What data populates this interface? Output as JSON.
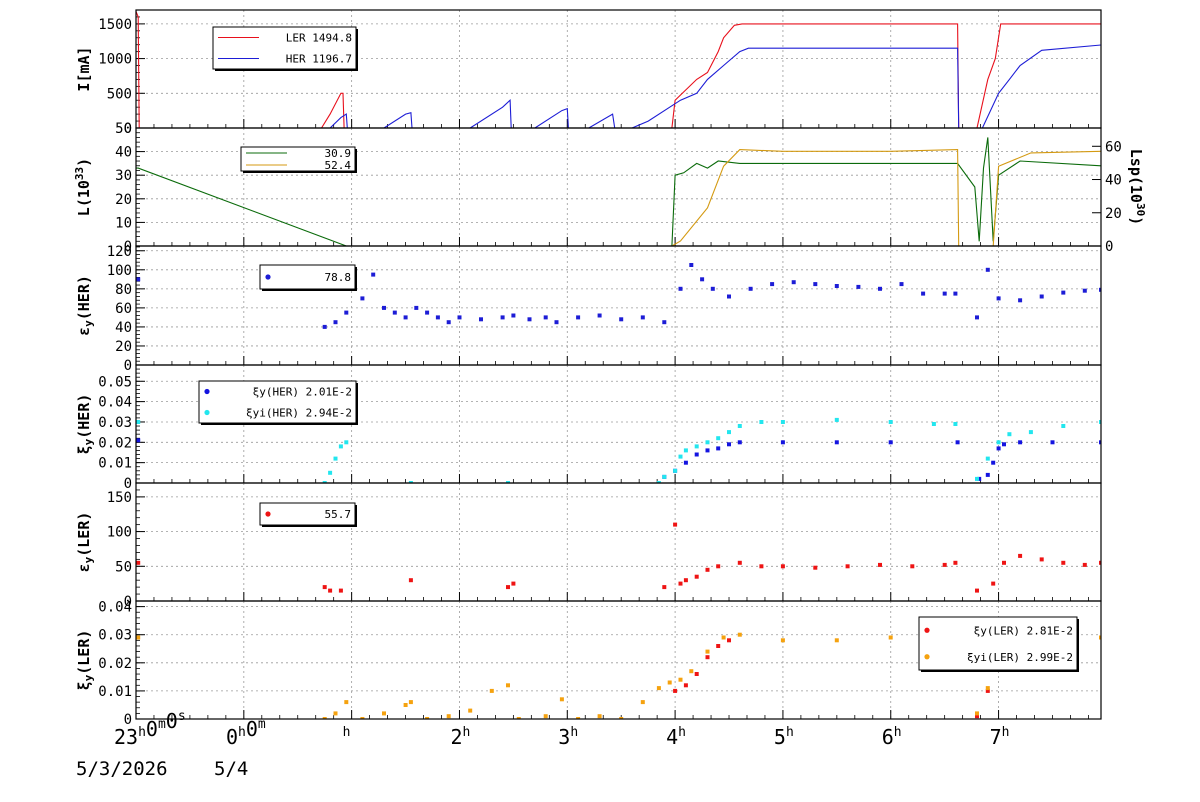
{
  "colors": {
    "ler": "#e8101c",
    "her": "#1d1dd6",
    "lum": "#0b6b0b",
    "lsp": "#d49a12",
    "xi_her": "#1414e0",
    "xi_her_i": "#22e6ee",
    "eps_ler": "#ee1414",
    "xi_ler": "#ee1414",
    "xi_ler_i": "#f5a20f"
  },
  "x_axis": {
    "range_hours": [
      -1,
      7.95
    ],
    "tick_labels": [
      {
        "h": -1,
        "label": "23",
        "sup": "h",
        "tail": "0",
        "sup2": "m",
        "tail2": "0",
        "sup3": "s"
      },
      {
        "h": 0,
        "label": "0",
        "sup": "h",
        "tail": "0",
        "sup2": "m"
      },
      {
        "h": 1,
        "label": "",
        "sup": "h"
      },
      {
        "h": 2,
        "label": "2",
        "sup": "h"
      },
      {
        "h": 3,
        "label": "3",
        "sup": "h"
      },
      {
        "h": 4,
        "label": "4",
        "sup": "h"
      },
      {
        "h": 5,
        "label": "5",
        "sup": "h"
      },
      {
        "h": 6,
        "label": "6",
        "sup": "h"
      },
      {
        "h": 7,
        "label": "7",
        "sup": "h"
      }
    ],
    "dates": [
      "5/3/2026",
      "5/4"
    ]
  },
  "chart_data": [
    {
      "type": "line",
      "panel": "current",
      "ylabel": "I[mA]",
      "ylim": [
        0,
        1700
      ],
      "yticks": [
        0,
        500,
        1000,
        1500
      ],
      "legend": [
        {
          "series": "LER",
          "text": "LER   1494.8"
        },
        {
          "series": "HER",
          "text": "HER   1196.7"
        }
      ],
      "series": [
        {
          "name": "LER",
          "color_key": "ler",
          "x": [
            -1,
            -0.98,
            -0.97,
            0.72,
            0.8,
            0.9,
            0.92,
            0.93,
            0.95,
            3.97,
            4.0,
            4.2,
            4.3,
            4.4,
            4.45,
            4.55,
            4.62,
            6.62,
            6.63,
            6.8,
            6.9,
            6.97,
            7.02,
            7.95
          ],
          "y": [
            1680,
            1600,
            0,
            0,
            200,
            500,
            500,
            0,
            0,
            0,
            400,
            700,
            800,
            1100,
            1300,
            1480,
            1500,
            1500,
            0,
            0,
            700,
            1000,
            1500,
            1500
          ]
        },
        {
          "name": "HER",
          "color_key": "her",
          "x": [
            -1,
            0.8,
            0.9,
            0.95,
            0.96,
            1.3,
            1.5,
            1.55,
            1.56,
            2.1,
            2.4,
            2.47,
            2.48,
            2.7,
            2.95,
            3.0,
            3.01,
            3.2,
            3.42,
            3.44,
            3.6,
            3.75,
            3.95,
            4.05,
            4.2,
            4.3,
            4.45,
            4.6,
            4.68,
            6.62,
            6.63,
            6.85,
            7.0,
            7.1,
            7.2,
            7.4,
            7.95
          ],
          "y": [
            0,
            0,
            150,
            200,
            0,
            0,
            200,
            220,
            0,
            0,
            300,
            400,
            0,
            0,
            250,
            280,
            0,
            0,
            200,
            0,
            0,
            100,
            300,
            400,
            500,
            700,
            900,
            1100,
            1150,
            1150,
            0,
            0,
            500,
            700,
            900,
            1120,
            1196
          ]
        }
      ]
    },
    {
      "type": "line",
      "panel": "luminosity",
      "ylabel": "L(10^33)",
      "ylabel_right": "Lsp(10^30)",
      "ylim": [
        0,
        50
      ],
      "yticks": [
        0,
        10,
        20,
        30,
        40,
        50
      ],
      "yticks_right": [
        0,
        20,
        40,
        60
      ],
      "right_scale_max": 71,
      "legend": [
        {
          "series": "L",
          "text": "30.9"
        },
        {
          "series": "Lsp",
          "text": "52.4"
        }
      ],
      "series": [
        {
          "name": "L",
          "color_key": "lum",
          "x": [
            -1,
            -0.98,
            0.95,
            3.97,
            4.0,
            4.08,
            4.2,
            4.3,
            4.4,
            4.6,
            5.0,
            6.0,
            6.62,
            6.78,
            6.82,
            6.86,
            6.9,
            6.95,
            7.0,
            7.2,
            7.95
          ],
          "y": [
            33,
            33,
            0,
            0,
            30,
            31,
            35,
            33,
            36,
            35,
            35,
            35,
            35,
            25,
            2,
            33,
            46,
            2,
            30,
            36,
            34
          ]
        },
        {
          "name": "Lsp",
          "color_key": "lsp",
          "x": [
            -1,
            3.97,
            4.05,
            4.3,
            4.45,
            4.6,
            5.0,
            6.0,
            6.62,
            6.63,
            6.95,
            7.0,
            7.3,
            7.95
          ],
          "y": [
            0,
            0,
            3,
            23,
            48,
            58,
            57,
            57,
            58,
            0,
            0,
            48,
            56,
            57
          ]
        }
      ]
    },
    {
      "type": "scatter",
      "panel": "emittance_her",
      "ylabel": "εy(HER)",
      "ylim": [
        0,
        125
      ],
      "yticks": [
        0,
        20,
        40,
        60,
        80,
        100,
        120
      ],
      "legend": [
        {
          "series": "εy(HER)",
          "text": "78.8"
        }
      ],
      "series": [
        {
          "name": "εy(HER)",
          "color_key": "her",
          "x": [
            -0.98,
            0.75,
            0.85,
            0.95,
            1.1,
            1.2,
            1.3,
            1.4,
            1.5,
            1.6,
            1.7,
            1.8,
            1.9,
            2.0,
            2.2,
            2.4,
            2.5,
            2.65,
            2.8,
            2.9,
            3.1,
            3.3,
            3.5,
            3.7,
            3.9,
            4.05,
            4.15,
            4.25,
            4.35,
            4.5,
            4.7,
            4.9,
            5.1,
            5.3,
            5.5,
            5.7,
            5.9,
            6.1,
            6.3,
            6.5,
            6.6,
            6.8,
            6.9,
            7.0,
            7.2,
            7.4,
            7.6,
            7.8,
            7.95
          ],
          "y": [
            90,
            40,
            45,
            55,
            70,
            95,
            60,
            55,
            50,
            60,
            55,
            50,
            45,
            50,
            48,
            50,
            52,
            48,
            50,
            45,
            50,
            52,
            48,
            50,
            45,
            80,
            105,
            90,
            80,
            72,
            80,
            85,
            87,
            85,
            83,
            82,
            80,
            85,
            75,
            75,
            75,
            50,
            100,
            70,
            68,
            72,
            76,
            78,
            79
          ]
        }
      ]
    },
    {
      "type": "scatter",
      "panel": "tune_shift_her",
      "ylabel": "ξy(HER)",
      "ylim": [
        0,
        0.058
      ],
      "yticks": [
        0,
        0.01,
        0.02,
        0.03,
        0.04,
        0.05
      ],
      "legend": [
        {
          "series": "ξy(HER)",
          "text": "ξy(HER)  2.01E-2"
        },
        {
          "series": "ξyi(HER)",
          "text": "ξyi(HER)  2.94E-2"
        }
      ],
      "series": [
        {
          "name": "ξy(HER)",
          "color_key": "xi_her",
          "x": [
            -0.98,
            3.9,
            4.0,
            4.1,
            4.2,
            4.3,
            4.4,
            4.5,
            4.6,
            5.0,
            5.5,
            6.0,
            6.62,
            6.82,
            6.9,
            6.95,
            7.0,
            7.05,
            7.2,
            7.5,
            7.95
          ],
          "y": [
            0.021,
            0.003,
            0.006,
            0.01,
            0.014,
            0.016,
            0.017,
            0.019,
            0.02,
            0.02,
            0.02,
            0.02,
            0.02,
            0.002,
            0.004,
            0.01,
            0.017,
            0.019,
            0.02,
            0.02,
            0.02
          ]
        },
        {
          "name": "ξyi(HER)",
          "color_key": "xi_her_i",
          "x": [
            -0.98,
            0.75,
            0.8,
            0.85,
            0.9,
            0.95,
            1.55,
            2.45,
            3.85,
            3.9,
            4.0,
            4.05,
            4.1,
            4.2,
            4.3,
            4.4,
            4.5,
            4.6,
            4.8,
            5.0,
            5.5,
            6.0,
            6.4,
            6.6,
            6.8,
            6.9,
            7.0,
            7.1,
            7.3,
            7.6,
            7.95
          ],
          "y": [
            0.03,
            0.0,
            0.005,
            0.012,
            0.018,
            0.02,
            0.0,
            0.0,
            0.0,
            0.003,
            0.006,
            0.013,
            0.016,
            0.018,
            0.02,
            0.022,
            0.025,
            0.028,
            0.03,
            0.03,
            0.031,
            0.03,
            0.029,
            0.029,
            0.002,
            0.012,
            0.02,
            0.024,
            0.025,
            0.028,
            0.03
          ]
        }
      ]
    },
    {
      "type": "scatter",
      "panel": "emittance_ler",
      "ylabel": "εy(LER)",
      "ylim": [
        0,
        170
      ],
      "yticks": [
        0,
        50,
        100,
        150
      ],
      "legend": [
        {
          "series": "εy(LER)",
          "text": "55.7"
        }
      ],
      "series": [
        {
          "name": "εy(LER)",
          "color_key": "eps_ler",
          "x": [
            -0.98,
            0.75,
            0.8,
            0.9,
            1.55,
            2.45,
            2.5,
            3.9,
            4.0,
            4.05,
            4.1,
            4.2,
            4.3,
            4.4,
            4.6,
            4.8,
            5.0,
            5.3,
            5.6,
            5.9,
            6.2,
            6.5,
            6.6,
            6.8,
            6.95,
            7.05,
            7.2,
            7.4,
            7.6,
            7.8,
            7.95
          ],
          "y": [
            55,
            20,
            15,
            15,
            30,
            20,
            25,
            20,
            110,
            25,
            30,
            35,
            45,
            50,
            55,
            50,
            50,
            48,
            50,
            52,
            50,
            52,
            55,
            15,
            25,
            55,
            65,
            60,
            55,
            52,
            55
          ]
        }
      ]
    },
    {
      "type": "scatter",
      "panel": "tune_shift_ler",
      "ylabel": "ξy(LER)",
      "ylim": [
        0,
        0.042
      ],
      "yticks": [
        0,
        0.01,
        0.02,
        0.03,
        0.04
      ],
      "legend": [
        {
          "series": "ξy(LER)",
          "text": "ξy(LER)  2.81E-2"
        },
        {
          "series": "ξyi(LER)",
          "text": "ξyi(LER)  2.99E-2"
        }
      ],
      "series": [
        {
          "name": "ξy(LER)",
          "color_key": "xi_ler",
          "x": [
            4.0,
            4.1,
            4.2,
            4.3,
            4.4,
            4.5,
            6.8,
            6.9,
            7.0,
            7.05,
            7.1,
            7.2
          ],
          "y": [
            0.01,
            0.012,
            0.016,
            0.022,
            0.026,
            0.028,
            0.001,
            0.01,
            0.018,
            0.022,
            0.026,
            0.028
          ]
        },
        {
          "name": "ξyi(LER)",
          "color_key": "xi_ler_i",
          "x": [
            -0.98,
            0.75,
            0.85,
            0.95,
            1.1,
            1.3,
            1.5,
            1.55,
            1.7,
            1.9,
            2.1,
            2.3,
            2.45,
            2.55,
            2.8,
            2.95,
            3.1,
            3.3,
            3.5,
            3.7,
            3.85,
            3.95,
            4.05,
            4.15,
            4.3,
            4.45,
            4.6,
            5.0,
            5.5,
            6.0,
            6.5,
            6.8,
            6.9,
            7.0,
            7.1,
            7.3,
            7.6,
            7.95
          ],
          "y": [
            0.029,
            0.0,
            0.002,
            0.006,
            0.0,
            0.002,
            0.005,
            0.006,
            0.0,
            0.001,
            0.003,
            0.01,
            0.012,
            0.0,
            0.001,
            0.007,
            0.0,
            0.001,
            0.0,
            0.006,
            0.011,
            0.013,
            0.014,
            0.017,
            0.024,
            0.029,
            0.03,
            0.028,
            0.028,
            0.029,
            0.028,
            0.002,
            0.011,
            0.02,
            0.026,
            0.029,
            0.029,
            0.029
          ]
        }
      ]
    }
  ]
}
